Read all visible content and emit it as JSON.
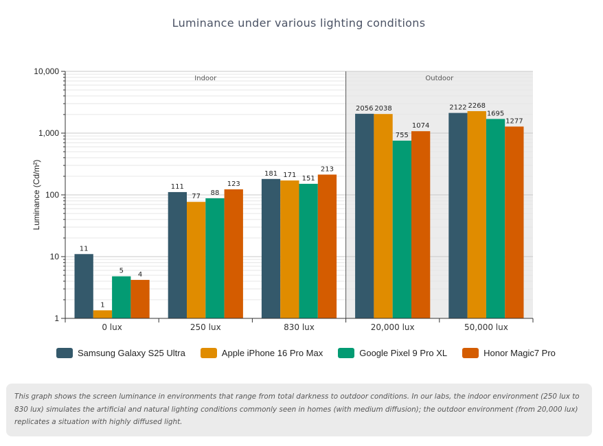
{
  "chart_data": {
    "type": "bar",
    "title": "Luminance under various lighting conditions",
    "ylabel": "Luminance (Cd/m²)",
    "yscale": "log",
    "ylim": [
      1,
      10000
    ],
    "yticks": [
      "1",
      "10",
      "100",
      "1,000",
      "10,000"
    ],
    "categories": [
      "0 lux",
      "250 lux",
      "830 lux",
      "20,000 lux",
      "50,000 lux"
    ],
    "regions": [
      {
        "label": "Indoor",
        "categories": [
          "0 lux",
          "250 lux",
          "830 lux"
        ],
        "shaded": false
      },
      {
        "label": "Outdoor",
        "categories": [
          "20,000 lux",
          "50,000 lux"
        ],
        "shaded": true
      }
    ],
    "series": [
      {
        "name": "Samsung Galaxy S25 Ultra",
        "color": "#34596b",
        "values": [
          11,
          111,
          181,
          2056,
          2122
        ]
      },
      {
        "name": "Apple iPhone 16 Pro Max",
        "color": "#e08c00",
        "values": [
          1.35,
          77,
          171,
          2038,
          2268
        ],
        "labels": [
          "1",
          "77",
          "171",
          "2038",
          "2268"
        ]
      },
      {
        "name": "Google Pixel 9 Pro XL",
        "color": "#039b73",
        "values": [
          4.8,
          88,
          151,
          755,
          1695
        ],
        "labels": [
          "5",
          "88",
          "151",
          "755",
          "1695"
        ]
      },
      {
        "name": "Honor Magic7 Pro",
        "color": "#d45c00",
        "values": [
          4.2,
          123,
          213,
          1074,
          1277
        ],
        "labels": [
          "4",
          "123",
          "213",
          "1074",
          "1277"
        ]
      }
    ],
    "legend": "bottom",
    "grid": true
  },
  "note": "This graph shows the screen luminance in environments that range from total darkness to outdoor conditions. In our labs, the indoor environment (250 lux to 830 lux) simulates the artificial and natural lighting conditions commonly seen in homes (with medium diffusion); the outdoor environment (from 20,000 lux) replicates a situation with highly diffused light."
}
